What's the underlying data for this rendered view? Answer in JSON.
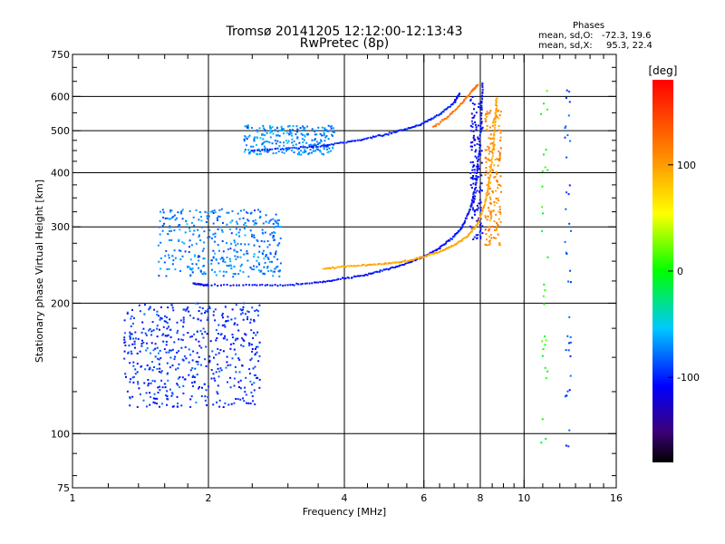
{
  "header": {
    "title_line1": "Tromsø 20141205 12:12:00-12:13:43",
    "title_line2": "RwPretec (8p)"
  },
  "phases": {
    "heading": "Phases",
    "o_label": "mean, sd,O:",
    "o_values": "-72.3, 19.6",
    "x_label": "mean, sd,X:",
    "x_values": "95.3, 22.4"
  },
  "colorbar": {
    "label": "[deg]",
    "ticks": [
      {
        "value": 100,
        "label": "100"
      },
      {
        "value": 0,
        "label": "0"
      },
      {
        "value": -100,
        "label": "-100"
      }
    ],
    "range": [
      -180,
      180
    ]
  },
  "chart_data": {
    "type": "scatter",
    "xlabel": "Frequency [MHz]",
    "ylabel": "Stationary phase Virtual Height [km]",
    "xscale": "log",
    "yscale": "log",
    "xlim": [
      1,
      16
    ],
    "ylim": [
      75,
      750
    ],
    "xticks": [
      {
        "value": 1,
        "label": "1"
      },
      {
        "value": 2,
        "label": "2"
      },
      {
        "value": 4,
        "label": "4"
      },
      {
        "value": 6,
        "label": "6"
      },
      {
        "value": 8,
        "label": "8"
      },
      {
        "value": 10,
        "label": "10"
      },
      {
        "value": 16,
        "label": "16"
      }
    ],
    "yticks": [
      {
        "value": 75,
        "label": "75"
      },
      {
        "value": 100,
        "label": "100"
      },
      {
        "value": 200,
        "label": "200"
      },
      {
        "value": 300,
        "label": "300"
      },
      {
        "value": 400,
        "label": "400"
      },
      {
        "value": 500,
        "label": "500"
      },
      {
        "value": 600,
        "label": "600"
      },
      {
        "value": 750,
        "label": "750"
      }
    ],
    "xgrid": [
      2,
      4,
      6,
      8,
      10
    ],
    "ygrid": [
      100,
      200,
      300,
      400,
      500,
      600
    ],
    "xminor": [
      1.2,
      1.4,
      1.6,
      1.8,
      2.5,
      3,
      3.5,
      4.5,
      5,
      5.5,
      6.5,
      7,
      7.5,
      8.5,
      9,
      9.5,
      11,
      12,
      13,
      14,
      15
    ],
    "yminor": [
      80,
      90,
      125,
      150,
      175,
      225,
      250,
      275,
      325,
      350,
      375,
      425,
      450,
      475,
      550,
      650,
      700
    ],
    "traces": [
      {
        "name": "o-trace-f-region",
        "phase": -105,
        "points": [
          [
            1.85,
            222
          ],
          [
            2.0,
            220
          ],
          [
            2.5,
            220
          ],
          [
            3.0,
            220
          ],
          [
            3.5,
            223
          ],
          [
            4.0,
            228
          ],
          [
            4.5,
            233
          ],
          [
            5.0,
            240
          ],
          [
            5.5,
            247
          ],
          [
            6.0,
            256
          ],
          [
            6.5,
            268
          ],
          [
            7.0,
            285
          ],
          [
            7.3,
            300
          ],
          [
            7.6,
            330
          ],
          [
            7.8,
            370
          ],
          [
            7.95,
            440
          ],
          [
            8.05,
            560
          ],
          [
            8.1,
            650
          ]
        ]
      },
      {
        "name": "x-trace-f-region",
        "phase": 95,
        "points": [
          [
            3.6,
            240
          ],
          [
            4.0,
            243
          ],
          [
            4.5,
            245
          ],
          [
            5.0,
            247
          ],
          [
            5.5,
            250
          ],
          [
            6.0,
            256
          ],
          [
            6.5,
            263
          ],
          [
            7.0,
            272
          ],
          [
            7.5,
            285
          ],
          [
            7.9,
            305
          ],
          [
            8.2,
            340
          ],
          [
            8.4,
            390
          ],
          [
            8.55,
            460
          ],
          [
            8.65,
            540
          ],
          [
            8.7,
            600
          ]
        ]
      },
      {
        "name": "o-trace-upper",
        "phase": -100,
        "points": [
          [
            2.5,
            450
          ],
          [
            3.0,
            455
          ],
          [
            3.5,
            460
          ],
          [
            4.0,
            470
          ],
          [
            4.5,
            480
          ],
          [
            5.0,
            492
          ],
          [
            5.5,
            505
          ],
          [
            6.0,
            520
          ],
          [
            6.5,
            545
          ],
          [
            7.0,
            580
          ],
          [
            7.2,
            610
          ]
        ]
      },
      {
        "name": "x-trace-upper",
        "phase": 120,
        "points": [
          [
            6.3,
            510
          ],
          [
            6.8,
            540
          ],
          [
            7.3,
            580
          ],
          [
            7.7,
            620
          ],
          [
            7.9,
            640
          ]
        ]
      }
    ],
    "clouds": [
      {
        "name": "spread-upper",
        "phase": -70,
        "count": 260,
        "x": [
          2.4,
          3.8
        ],
        "y": [
          440,
          515
        ]
      },
      {
        "name": "spread-f-main",
        "phase": -75,
        "count": 380,
        "x": [
          1.55,
          2.9
        ],
        "y": [
          230,
          330
        ]
      },
      {
        "name": "spread-e-region",
        "phase": -95,
        "count": 520,
        "x": [
          1.3,
          2.6
        ],
        "y": [
          115,
          200
        ]
      },
      {
        "name": "x-cusp",
        "phase": 110,
        "count": 180,
        "x": [
          8.2,
          8.9
        ],
        "y": [
          270,
          560
        ]
      },
      {
        "name": "o-cusp",
        "phase": -110,
        "count": 140,
        "x": [
          7.6,
          8.1
        ],
        "y": [
          280,
          600
        ]
      },
      {
        "name": "noise-col-11",
        "phase": 0,
        "count": 30,
        "x": [
          10.9,
          11.3
        ],
        "y": [
          90,
          620
        ]
      },
      {
        "name": "noise-col-12",
        "phase": -90,
        "count": 40,
        "x": [
          12.3,
          12.7
        ],
        "y": [
          82,
          640
        ]
      }
    ]
  }
}
